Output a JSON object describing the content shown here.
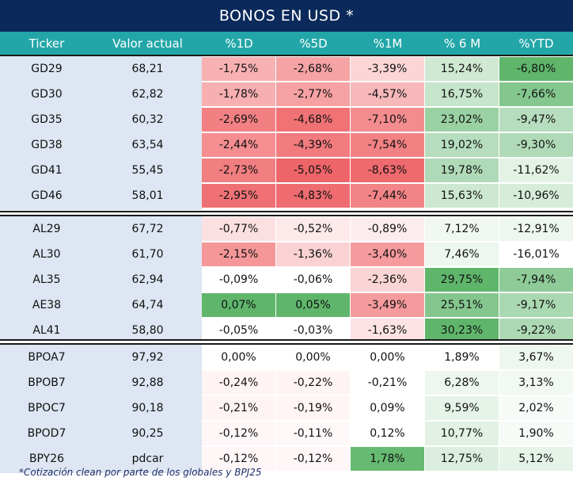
{
  "title": "BONOS EN USD *",
  "columns": [
    "Ticker",
    "Valor actual",
    "%1D",
    "%5D",
    "%1M",
    "% 6 M",
    "%YTD"
  ],
  "groups": [
    {
      "rows": [
        {
          "ticker": "GD29",
          "value": "68,21",
          "cells": [
            {
              "text": "-1,75%",
              "bg": "#f7b1b3"
            },
            {
              "text": "-2,68%",
              "bg": "#f6a3a5"
            },
            {
              "text": "-3,39%",
              "bg": "#fcd5d6"
            },
            {
              "text": "15,24%",
              "bg": "#cfe9d3"
            },
            {
              "text": "-6,80%",
              "bg": "#5fb66b"
            }
          ]
        },
        {
          "ticker": "GD30",
          "value": "62,82",
          "cells": [
            {
              "text": "-1,78%",
              "bg": "#f7afb1"
            },
            {
              "text": "-2,77%",
              "bg": "#f6a1a3"
            },
            {
              "text": "-4,57%",
              "bg": "#f7b8ba"
            },
            {
              "text": "16,75%",
              "bg": "#c6e5cb"
            },
            {
              "text": "-7,66%",
              "bg": "#84c78e"
            }
          ]
        },
        {
          "ticker": "GD35",
          "value": "60,32",
          "cells": [
            {
              "text": "-2,69%",
              "bg": "#f28083"
            },
            {
              "text": "-4,68%",
              "bg": "#f17275"
            },
            {
              "text": "-7,10%",
              "bg": "#f38c8f"
            },
            {
              "text": "23,02%",
              "bg": "#9ad1a2"
            },
            {
              "text": "-9,47%",
              "bg": "#b6ddbd"
            }
          ]
        },
        {
          "ticker": "GD38",
          "value": "63,54",
          "cells": [
            {
              "text": "-2,44%",
              "bg": "#f48e91"
            },
            {
              "text": "-4,39%",
              "bg": "#f27b7e"
            },
            {
              "text": "-7,54%",
              "bg": "#f28184"
            },
            {
              "text": "19,02%",
              "bg": "#b6ddbd"
            },
            {
              "text": "-9,30%",
              "bg": "#b0dab7"
            }
          ]
        },
        {
          "ticker": "GD41",
          "value": "55,45",
          "cells": [
            {
              "text": "-2,73%",
              "bg": "#f17e81"
            },
            {
              "text": "-5,05%",
              "bg": "#ee6569"
            },
            {
              "text": "-8,63%",
              "bg": "#ef6a6e"
            },
            {
              "text": "19,78%",
              "bg": "#b0dab7"
            },
            {
              "text": "-11,62%",
              "bg": "#e4f2e6"
            }
          ]
        },
        {
          "ticker": "GD46",
          "value": "58,01",
          "cells": [
            {
              "text": "-2,95%",
              "bg": "#ef7175"
            },
            {
              "text": "-4,83%",
              "bg": "#ef6c70"
            },
            {
              "text": "-7,44%",
              "bg": "#f28487"
            },
            {
              "text": "15,63%",
              "bg": "#cce8d1"
            },
            {
              "text": "-10,96%",
              "bg": "#d6edda"
            }
          ]
        }
      ]
    },
    {
      "rows": [
        {
          "ticker": "AL29",
          "value": "67,72",
          "cells": [
            {
              "text": "-0,77%",
              "bg": "#fce0e1"
            },
            {
              "text": "-0,52%",
              "bg": "#fde9ea"
            },
            {
              "text": "-0,89%",
              "bg": "#fdeced"
            },
            {
              "text": "7,12%",
              "bg": "#f0f8f1"
            },
            {
              "text": "-12,91%",
              "bg": "#eef7ef"
            }
          ]
        },
        {
          "ticker": "AL30",
          "value": "61,70",
          "cells": [
            {
              "text": "-2,15%",
              "bg": "#f59799"
            },
            {
              "text": "-1,36%",
              "bg": "#fbd2d4"
            },
            {
              "text": "-3,40%",
              "bg": "#f59a9d"
            },
            {
              "text": "7,46%",
              "bg": "#eef7ef"
            },
            {
              "text": "-16,01%",
              "bg": "#ffffff"
            }
          ]
        },
        {
          "ticker": "AL35",
          "value": "62,94",
          "cells": [
            {
              "text": "-0,09%",
              "bg": "#ffffff"
            },
            {
              "text": "-0,06%",
              "bg": "#ffffff"
            },
            {
              "text": "-2,36%",
              "bg": "#fbd4d5"
            },
            {
              "text": "29,75%",
              "bg": "#5fb66b"
            },
            {
              "text": "-7,94%",
              "bg": "#8ecb98"
            }
          ]
        },
        {
          "ticker": "AE38",
          "value": "64,74",
          "cells": [
            {
              "text": "0,07%",
              "bg": "#5fb66b"
            },
            {
              "text": "0,05%",
              "bg": "#5fb66b"
            },
            {
              "text": "-3,49%",
              "bg": "#f59a9d"
            },
            {
              "text": "25,51%",
              "bg": "#84c78e"
            },
            {
              "text": "-9,17%",
              "bg": "#aad8b1"
            }
          ]
        },
        {
          "ticker": "AL41",
          "value": "58,80",
          "cells": [
            {
              "text": "-0,05%",
              "bg": "#ffffff"
            },
            {
              "text": "-0,03%",
              "bg": "#ffffff"
            },
            {
              "text": "-1,63%",
              "bg": "#fde3e4"
            },
            {
              "text": "30,23%",
              "bg": "#5fb66b"
            },
            {
              "text": "-9,22%",
              "bg": "#acd9b3"
            }
          ]
        }
      ]
    },
    {
      "rows": [
        {
          "ticker": "BPOA7",
          "value": "97,92",
          "cells": [
            {
              "text": "0,00%",
              "bg": "#ffffff"
            },
            {
              "text": "0,00%",
              "bg": "#ffffff"
            },
            {
              "text": "0,00%",
              "bg": "#ffffff"
            },
            {
              "text": "1,89%",
              "bg": "#ffffff"
            },
            {
              "text": "3,67%",
              "bg": "#eef7ef"
            }
          ]
        },
        {
          "ticker": "BPOB7",
          "value": "92,88",
          "cells": [
            {
              "text": "-0,24%",
              "bg": "#fff4f4"
            },
            {
              "text": "-0,22%",
              "bg": "#fff4f4"
            },
            {
              "text": "-0,21%",
              "bg": "#ffffff"
            },
            {
              "text": "6,28%",
              "bg": "#eef7ef"
            },
            {
              "text": "3,13%",
              "bg": "#f2f9f3"
            }
          ]
        },
        {
          "ticker": "BPOC7",
          "value": "90,18",
          "cells": [
            {
              "text": "-0,21%",
              "bg": "#fff4f4"
            },
            {
              "text": "-0,19%",
              "bg": "#fff5f5"
            },
            {
              "text": "0,09%",
              "bg": "#ffffff"
            },
            {
              "text": "9,59%",
              "bg": "#e6f3e8"
            },
            {
              "text": "2,02%",
              "bg": "#f7fbf7"
            }
          ]
        },
        {
          "ticker": "BPOD7",
          "value": "90,25",
          "cells": [
            {
              "text": "-0,12%",
              "bg": "#fff7f7"
            },
            {
              "text": "-0,11%",
              "bg": "#fff8f8"
            },
            {
              "text": "0,12%",
              "bg": "#ffffff"
            },
            {
              "text": "10,77%",
              "bg": "#e2f1e4"
            },
            {
              "text": "1,90%",
              "bg": "#f7fbf7"
            }
          ]
        },
        {
          "ticker": "BPY26",
          "value": "pdcar",
          "cells": [
            {
              "text": "-0,12%",
              "bg": "#fff7f7"
            },
            {
              "text": "-0,12%",
              "bg": "#fff7f7"
            },
            {
              "text": "1,78%",
              "bg": "#66ba72"
            },
            {
              "text": "12,75%",
              "bg": "#dbeedf"
            },
            {
              "text": "5,12%",
              "bg": "#e6f3e8"
            }
          ]
        }
      ]
    }
  ],
  "footnote": "*Cotización clean por parte de los globales y BPJ25"
}
